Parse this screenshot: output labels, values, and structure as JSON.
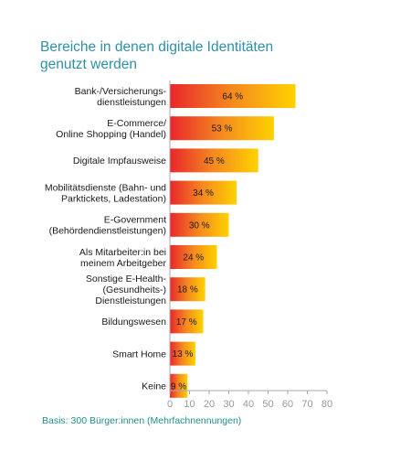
{
  "header": {
    "title_line1": "Bereiche in denen digitale Identitäten",
    "title_line2": "genutzt werden"
  },
  "footer": {
    "basis": "Basis: 300 Bürger:innen (Mehrfachnennungen)"
  },
  "colors": {
    "bar_start": "#e8262c",
    "bar_mid": "#f58a1f",
    "bar_end": "#ffd200",
    "title": "#2f8fa6",
    "axis": "#aaaaaa"
  },
  "chart_data": {
    "type": "bar",
    "orientation": "horizontal",
    "categories": [
      [
        "Bank-/Versicherungs-",
        "dienstleistungen"
      ],
      [
        "E-Commerce/",
        "Online Shopping (Handel)"
      ],
      [
        "Digitale Impfausweise"
      ],
      [
        "Mobilitätsdienste (Bahn- und",
        "Parktickets, Ladestation)"
      ],
      [
        "E-Government",
        "(Behördendienstleistungen)"
      ],
      [
        "Als Mitarbeiter:in bei",
        "meinem Arbeitgeber"
      ],
      [
        "Sonstige E-Health-",
        "(Gesundheits-)",
        "Dienstleistungen"
      ],
      [
        "Bildungswesen"
      ],
      [
        "Smart Home"
      ],
      [
        "Keine"
      ]
    ],
    "values": [
      64,
      53,
      45,
      34,
      30,
      24,
      18,
      17,
      13,
      9
    ],
    "value_labels": [
      "64 %",
      "53 %",
      "45 %",
      "34 %",
      "30 %",
      "24 %",
      "18 %",
      "17 %",
      "13 %",
      "9 %"
    ],
    "xticks": [
      0,
      10,
      20,
      30,
      40,
      50,
      60,
      70,
      80
    ],
    "xlim": [
      0,
      80
    ],
    "grid": false
  }
}
